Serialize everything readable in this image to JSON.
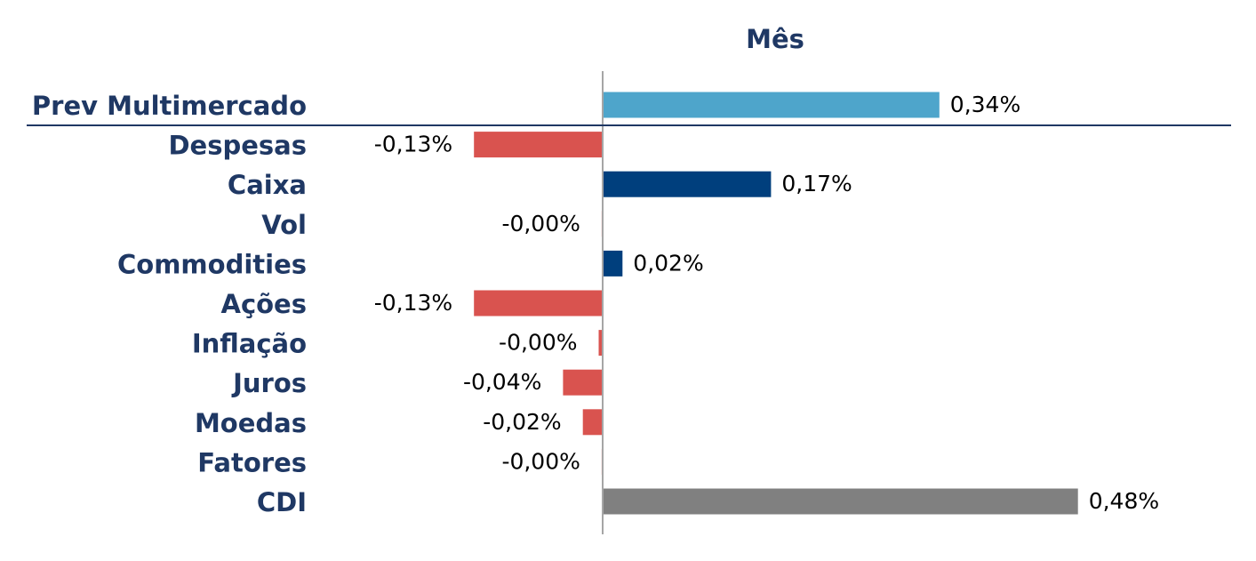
{
  "chart_data": {
    "type": "bar",
    "orientation": "horizontal",
    "title": "Mês",
    "categories": [
      "Prev Multimercado",
      "Despesas",
      "Caixa",
      "Vol",
      "Commodities",
      "Ações",
      "Inflação",
      "Juros",
      "Moedas",
      "Fatores",
      "CDI"
    ],
    "values": [
      0.34,
      -0.13,
      0.17,
      -0.001,
      0.02,
      -0.13,
      -0.004,
      -0.04,
      -0.02,
      -0.001,
      0.48
    ],
    "value_labels": [
      "0,34%",
      "-0,13%",
      "0,17%",
      "-0,00%",
      "0,02%",
      "-0,13%",
      "-0,00%",
      "-0,04%",
      "-0,02%",
      "-0,00%",
      "0,48%"
    ],
    "bar_colors": [
      "#4ea5cb",
      "#d9534f",
      "#003f7d",
      "#d9534f",
      "#003f7d",
      "#d9534f",
      "#d9534f",
      "#d9534f",
      "#d9534f",
      "#d9534f",
      "#808080"
    ],
    "separator_after_index": 0,
    "colors": {
      "label": "#1f3864",
      "axis": "#a6a6a6",
      "separator": "#1f3864"
    }
  }
}
